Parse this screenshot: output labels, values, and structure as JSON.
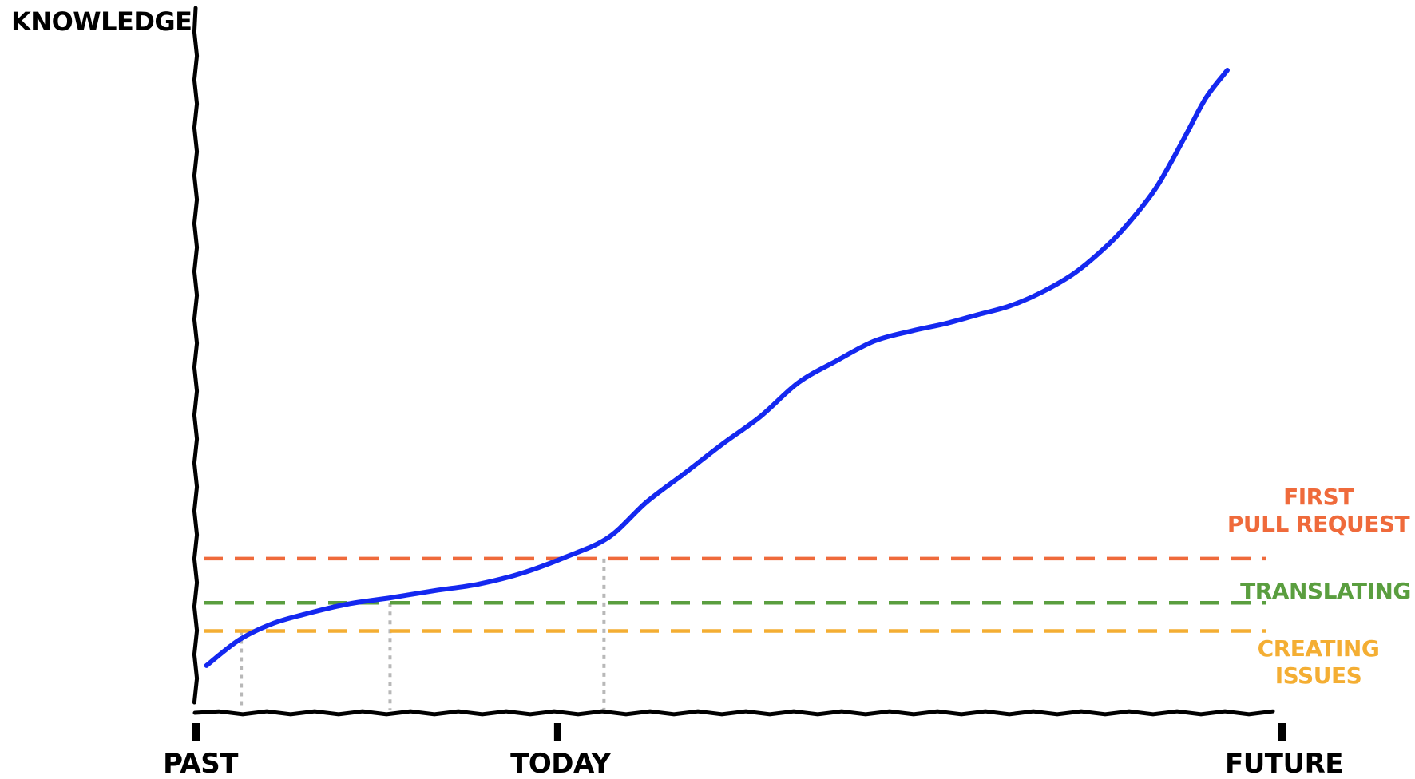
{
  "chart_data": {
    "type": "line",
    "title": "",
    "ylabel": "KNOWLEDGE",
    "xlabel": "",
    "x_ticks": [
      "PAST",
      "TODAY",
      "FUTURE"
    ],
    "xlim": [
      0,
      100
    ],
    "ylim": [
      0,
      100
    ],
    "grid": false,
    "legend": "none",
    "series": [
      {
        "color": "#1428f0",
        "points": [
          [
            1,
            7
          ],
          [
            4,
            11
          ],
          [
            7,
            13.5
          ],
          [
            10,
            15
          ],
          [
            14,
            16.6
          ],
          [
            18,
            17.6
          ],
          [
            22,
            18.7
          ],
          [
            26,
            19.7
          ],
          [
            30,
            21.4
          ],
          [
            34,
            23.9
          ],
          [
            38,
            27
          ],
          [
            41.5,
            32.5
          ],
          [
            45,
            37
          ],
          [
            48.5,
            41.6
          ],
          [
            52,
            45.9
          ],
          [
            55.5,
            51.2
          ],
          [
            59,
            54.6
          ],
          [
            62.5,
            57.7
          ],
          [
            66,
            59.3
          ],
          [
            69,
            60.4
          ],
          [
            72,
            61.8
          ],
          [
            75,
            63.2
          ],
          [
            78,
            65.4
          ],
          [
            81,
            68.4
          ],
          [
            84,
            72.7
          ],
          [
            86,
            76.3
          ],
          [
            88.5,
            81.8
          ],
          [
            91,
            89.3
          ],
          [
            93,
            95.6
          ],
          [
            95,
            100
          ]
        ]
      }
    ],
    "thresholds": [
      {
        "label_lines": [
          "FIRST",
          "PULL REQUEST"
        ],
        "value": 23.7,
        "color": "#ef6a3b"
      },
      {
        "label_lines": [
          "TRANSLATING"
        ],
        "value": 16.8,
        "color": "#5a9e3f"
      },
      {
        "label_lines": [
          "CREATING",
          "ISSUES"
        ],
        "value": 12.4,
        "color": "#f4ae33"
      }
    ],
    "crossings": [
      4.2,
      17.9,
      37.6
    ],
    "tick_positions": [
      0,
      33.3,
      100
    ]
  }
}
